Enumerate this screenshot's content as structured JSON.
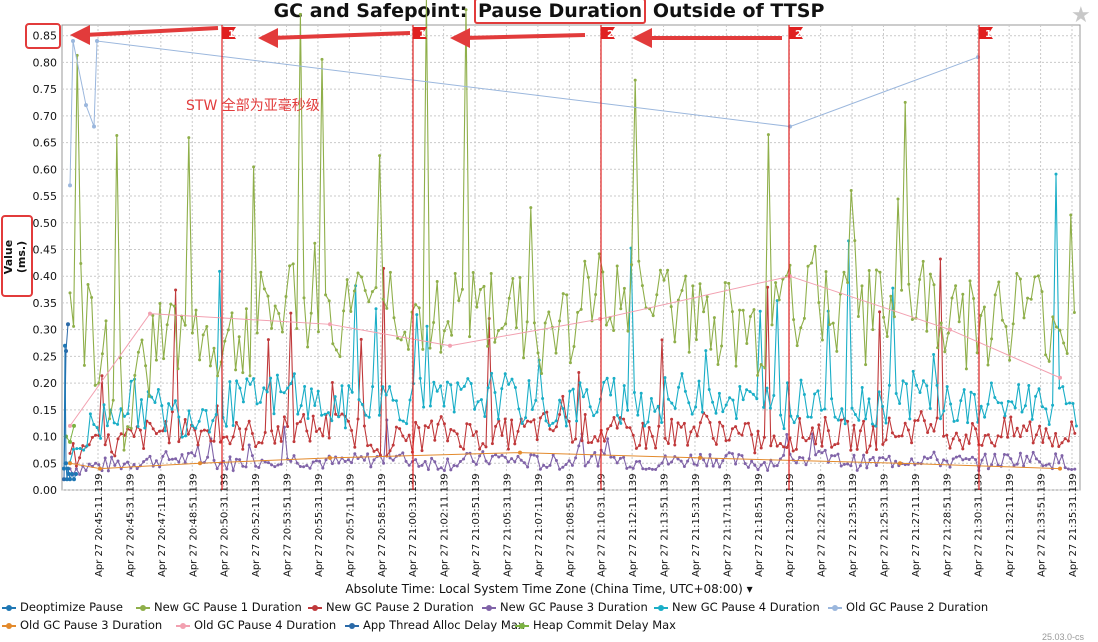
{
  "chart_data": {
    "type": "line",
    "title_parts": [
      "GC and Safepoint: ",
      "Pause Duration",
      " Outside of TTSP"
    ],
    "ylabel": "Value (ms.)",
    "xlabel": "Absolute Time: Local System Time Zone (China Time, UTC+08:00) ▾",
    "ylim": [
      0,
      0.87
    ],
    "yticks": [
      "0.00",
      "0.05",
      "0.10",
      "0.15",
      "0.20",
      "0.25",
      "0.30",
      "0.35",
      "0.40",
      "0.45",
      "0.50",
      "0.55",
      "0.60",
      "0.65",
      "0.70",
      "0.75",
      "0.80",
      "0.85"
    ],
    "xticks": [
      "Apr 27 20:45:11.139",
      "Apr 27 20:45:31.139",
      "Apr 27 20:47:11.139",
      "Apr 27 20:48:51.139",
      "Apr 27 20:50:31.139",
      "Apr 27 20:52:11.139",
      "Apr 27 20:53:51.139",
      "Apr 27 20:55:31.139",
      "Apr 27 20:57:11.139",
      "Apr 27 20:58:51.139",
      "Apr 27 21:00:31.139",
      "Apr 27 21:02:11.139",
      "Apr 27 21:03:51.139",
      "Apr 27 21:05:31.139",
      "Apr 27 21:07:11.139",
      "Apr 27 21:08:51.139",
      "Apr 27 21:10:31.139",
      "Apr 27 21:12:11.139",
      "Apr 27 21:13:51.139",
      "Apr 27 21:15:31.139",
      "Apr 27 21:17:11.139",
      "Apr 27 21:18:51.139",
      "Apr 27 21:20:31.139",
      "Apr 27 21:22:11.139",
      "Apr 27 21:23:51.139",
      "Apr 27 21:25:31.139",
      "Apr 27 21:27:11.139",
      "Apr 27 21:28:51.139",
      "Apr 27 21:30:31.139",
      "Apr 27 21:32:11.139",
      "Apr 27 21:33:51.139",
      "Apr 27 21:35:31.139"
    ],
    "grid": true,
    "legend_position": "bottom",
    "series": [
      {
        "name": "Deoptimize Pause",
        "color": "#1f77b4",
        "values": [
          0.04,
          0.27,
          0.05,
          0.02,
          0.04,
          0.03,
          0.02,
          0.03,
          0.02,
          0.03
        ]
      },
      {
        "name": "New GC Pause 1 Duration",
        "color": "#8faf4a",
        "values": [
          0.38,
          0.16,
          0.31,
          0.27,
          0.35,
          0.31,
          0.36,
          0.3,
          0.35,
          0.28,
          0.37,
          0.34,
          0.33,
          0.29,
          0.37,
          0.32,
          0.36,
          0.31,
          0.34,
          0.3
        ]
      },
      {
        "name": "New GC Pause 2 Duration",
        "color": "#c0393b",
        "values": [
          0.06,
          0.09,
          0.12,
          0.1,
          0.11,
          0.12,
          0.09,
          0.11,
          0.1,
          0.12,
          0.11,
          0.1,
          0.12,
          0.09,
          0.11,
          0.1,
          0.12,
          0.1,
          0.11,
          0.1
        ]
      },
      {
        "name": "New GC Pause 3 Duration",
        "color": "#8063a8",
        "values": [
          0.04,
          0.05,
          0.06,
          0.05,
          0.06,
          0.05,
          0.06,
          0.05,
          0.06,
          0.05,
          0.06,
          0.05,
          0.06,
          0.05,
          0.06,
          0.05,
          0.06,
          0.05,
          0.06,
          0.05
        ]
      },
      {
        "name": "New GC Pause 4 Duration",
        "color": "#1aaec7",
        "values": [
          0.07,
          0.17,
          0.14,
          0.16,
          0.18,
          0.15,
          0.17,
          0.16,
          0.18,
          0.15,
          0.17,
          0.16,
          0.19,
          0.15,
          0.17,
          0.16,
          0.18,
          0.15,
          0.17,
          0.16
        ]
      },
      {
        "name": "Old GC Pause 2 Duration",
        "color": "#9bb7dd",
        "values": [
          0.57,
          0.84,
          0.72,
          0.68,
          0.84,
          0.68,
          0.81
        ]
      },
      {
        "name": "Old GC Pause 3 Duration",
        "color": "#e38a2c",
        "values": [
          0.05,
          0.04,
          0.05,
          0.06,
          0.07,
          0.06,
          0.05,
          0.04
        ]
      },
      {
        "name": "Old GC Pause 4 Duration",
        "color": "#f2a0b0",
        "values": [
          0.12,
          0.33,
          0.31,
          0.27,
          0.32,
          0.4,
          0.3,
          0.21
        ]
      },
      {
        "name": "App Thread Alloc Delay Max",
        "color": "#2b6aa8",
        "values": [
          0.02,
          0.26,
          0.31
        ]
      },
      {
        "name": "Heap Commit Delay Max",
        "color": "#7cb342",
        "values": [
          0.1,
          0.09,
          0.12
        ]
      }
    ],
    "markers": [
      {
        "label": "1",
        "time": "Apr 27 20:50:31"
      },
      {
        "label": "1",
        "time": "Apr 27 21:00:31"
      },
      {
        "label": "2",
        "time": "Apr 27 21:10:31"
      },
      {
        "label": "2",
        "time": "Apr 27 21:20:31"
      },
      {
        "label": "1",
        "time": "Apr 27 21:30:31"
      }
    ],
    "annotation": "STW 全部为亚毫秒级"
  },
  "version_text": "25.03.0-cs"
}
